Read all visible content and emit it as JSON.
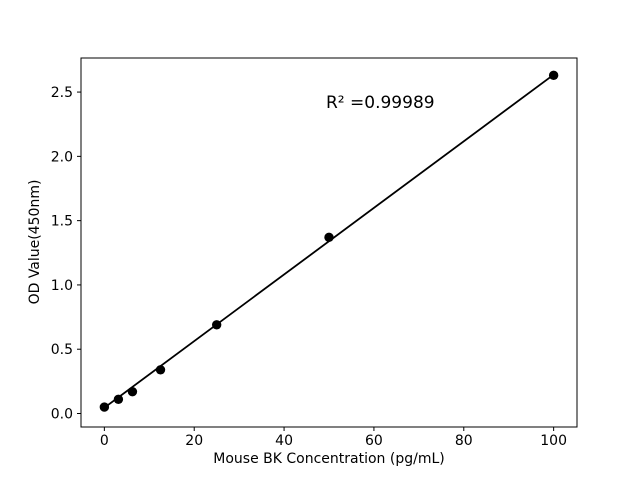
{
  "chart_data": {
    "type": "scatter",
    "title": "",
    "xlabel": "Mouse BK Concentration (pg/mL)",
    "ylabel": "OD Value(450nm)",
    "annotation": "R² =0.99989",
    "x": [
      0,
      3.125,
      6.25,
      12.5,
      25,
      50,
      100
    ],
    "y": [
      0.05,
      0.11,
      0.17,
      0.34,
      0.69,
      1.37,
      2.63
    ],
    "fit_line": {
      "x": [
        0,
        100
      ],
      "y": [
        0.045,
        2.635
      ]
    },
    "x_ticks": [
      "0",
      "20",
      "40",
      "60",
      "80",
      "100"
    ],
    "x_tick_values": [
      0,
      20,
      40,
      60,
      80,
      100
    ],
    "y_ticks": [
      "0.0",
      "0.5",
      "1.0",
      "1.5",
      "2.0",
      "2.5"
    ],
    "y_tick_values": [
      0.0,
      0.5,
      1.0,
      1.5,
      2.0,
      2.5
    ],
    "xlim": [
      -5.2,
      105.2
    ],
    "ylim": [
      -0.105,
      2.765
    ],
    "grid": false,
    "legend": null,
    "marker_color": "#000000",
    "line_color": "#000000",
    "axis_color": "#000000",
    "background": "#ffffff"
  }
}
